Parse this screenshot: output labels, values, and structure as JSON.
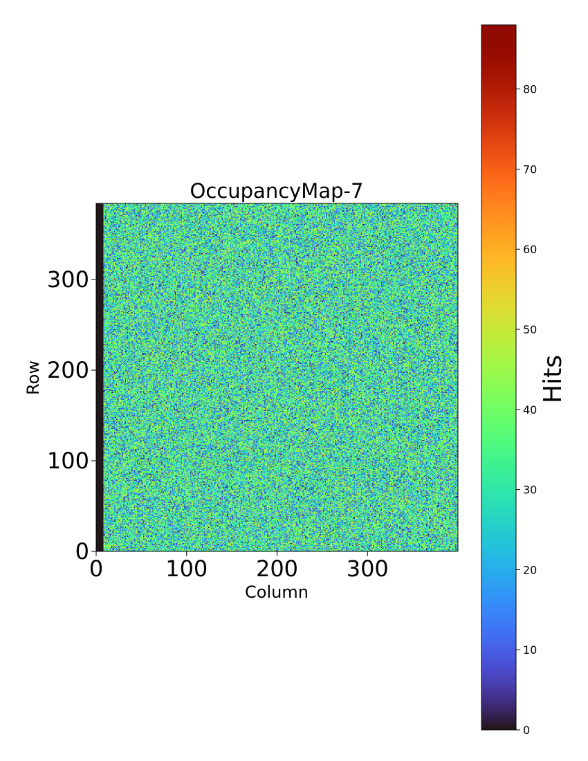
{
  "chart_data": {
    "type": "heatmap",
    "title": "OccupancyMap-7",
    "xlabel": "Column",
    "ylabel": "Row",
    "xlim": [
      0,
      400
    ],
    "ylim": [
      0,
      384
    ],
    "x_ticks": [
      0,
      100,
      200,
      300
    ],
    "y_ticks": [
      0,
      100,
      200,
      300
    ],
    "dead_columns": [
      0,
      7
    ],
    "grid": false,
    "colormap": "turbo",
    "colorbar": {
      "label": "Hits",
      "min": 0,
      "max": 88,
      "ticks": [
        0,
        10,
        20,
        30,
        40,
        50,
        60,
        70,
        80
      ],
      "position": "right"
    },
    "value_distribution": {
      "typical_min": 0,
      "typical_max": 50,
      "mean": 30
    }
  }
}
